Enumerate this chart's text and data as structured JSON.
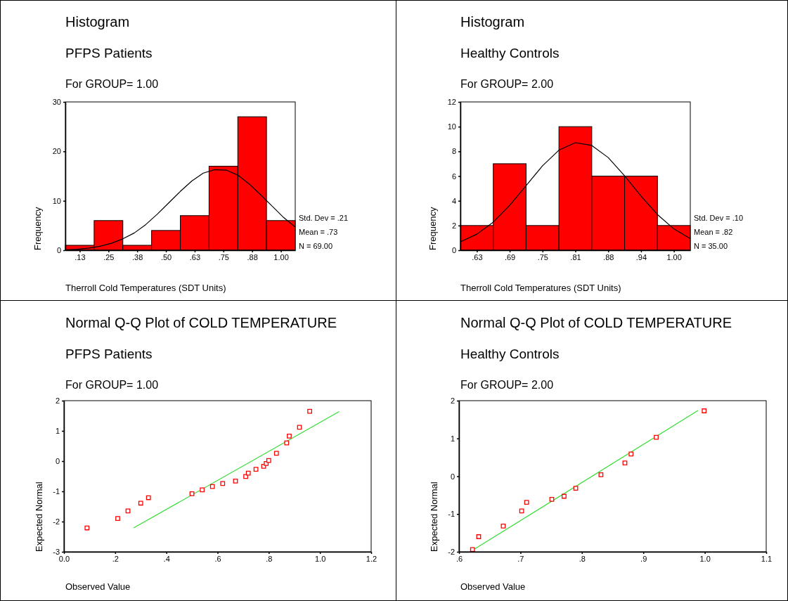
{
  "chart_data": [
    {
      "type": "histogram",
      "title": "Histogram",
      "subtitle": "PFPS Patients",
      "xlabel": "Therroll Cold Temperatures (SDT Units)",
      "ylabel": "Frequency",
      "annotations": [
        "For GROUP= 1.00",
        "Std. Dev = .21",
        "Mean = .73",
        "N = 69.00"
      ],
      "bins": [
        0.0625,
        0.1875,
        0.3125,
        0.4375,
        0.5625,
        0.6875,
        0.8125,
        0.9375,
        1.0625
      ],
      "values": [
        1,
        6,
        1,
        4,
        7,
        17,
        27,
        6
      ],
      "color": "#ff0000",
      "xlim": [
        0.0625,
        1.0625
      ],
      "xticks": [
        {
          "value": 0.125,
          "label": ".13"
        },
        {
          "value": 0.25,
          "label": ".25"
        },
        {
          "value": 0.375,
          "label": ".38"
        },
        {
          "value": 0.5,
          "label": ".50"
        },
        {
          "value": 0.625,
          "label": ".63"
        },
        {
          "value": 0.75,
          "label": ".75"
        },
        {
          "value": 0.875,
          "label": ".88"
        },
        {
          "value": 1.0,
          "label": "1.00"
        }
      ],
      "ylim": [
        0,
        30
      ],
      "yticks": [
        0,
        10,
        20,
        30
      ],
      "series": [
        {
          "type": "line",
          "color": "#000000",
          "x": [
            0.0625,
            0.1125,
            0.1625,
            0.2125,
            0.2625,
            0.3125,
            0.3625,
            0.4125,
            0.4625,
            0.5125,
            0.5625,
            0.6125,
            0.6625,
            0.7125,
            0.7625,
            0.8125,
            0.8625,
            0.9125,
            0.9625,
            1.0125,
            1.0625
          ],
          "values": [
            0.1,
            0.2,
            0.4,
            0.8,
            1.4,
            2.3,
            3.5,
            5.2,
            7.3,
            9.6,
            11.9,
            14.0,
            15.6,
            16.3,
            16.2,
            15.2,
            13.4,
            11.2,
            8.9,
            6.6,
            4.7
          ]
        }
      ]
    },
    {
      "type": "histogram",
      "title": "Histogram",
      "subtitle": "Healthy Controls",
      "xlabel": "Therroll Cold Temperatures (SDT Units)",
      "ylabel": "Frequency",
      "annotations": [
        "For GROUP= 2.00",
        "Std. Dev = .10",
        "Mean = .82",
        "N = 35.00"
      ],
      "bins": [
        0.59375,
        0.65625,
        0.71875,
        0.78125,
        0.84375,
        0.90625,
        0.96875,
        1.03125
      ],
      "values": [
        2,
        7,
        2,
        10,
        6,
        6,
        2
      ],
      "color": "#ff0000",
      "xlim": [
        0.59375,
        1.03125
      ],
      "xticks": [
        {
          "value": 0.625,
          "label": ".63"
        },
        {
          "value": 0.6875,
          "label": ".69"
        },
        {
          "value": 0.75,
          "label": ".75"
        },
        {
          "value": 0.8125,
          "label": ".81"
        },
        {
          "value": 0.875,
          "label": ".88"
        },
        {
          "value": 0.9375,
          "label": ".94"
        },
        {
          "value": 1.0,
          "label": "1.00"
        }
      ],
      "ylim": [
        0,
        12
      ],
      "yticks": [
        0,
        2,
        4,
        6,
        8,
        10,
        12
      ],
      "series": [
        {
          "type": "line",
          "color": "#000000",
          "x": [
            0.59375,
            0.625,
            0.65625,
            0.6875,
            0.71875,
            0.75,
            0.78125,
            0.8125,
            0.84375,
            0.875,
            0.90625,
            0.9375,
            0.96875,
            1.0,
            1.03125
          ],
          "values": [
            0.68,
            1.3,
            2.28,
            3.63,
            5.23,
            6.83,
            8.1,
            8.7,
            8.48,
            7.5,
            6.02,
            4.38,
            2.89,
            1.73,
            0.94
          ]
        }
      ]
    },
    {
      "type": "scatter",
      "title": "Normal Q-Q Plot of COLD TEMPERATURE",
      "subtitle": "PFPS Patients",
      "xlabel": "Observed Value",
      "ylabel": "Expected Normal",
      "annotations": [
        "For GROUP= 1.00"
      ],
      "xlim": [
        0,
        1.2
      ],
      "xticks": [
        {
          "value": 0,
          "label": "0.0"
        },
        {
          "value": 0.2,
          "label": ".2"
        },
        {
          "value": 0.4,
          "label": ".4"
        },
        {
          "value": 0.6,
          "label": ".6"
        },
        {
          "value": 0.8,
          "label": ".8"
        },
        {
          "value": 1.0,
          "label": "1.0"
        },
        {
          "value": 1.2,
          "label": "1.2"
        }
      ],
      "ylim": [
        -3,
        2
      ],
      "yticks": [
        -3,
        -2,
        -1,
        0,
        1,
        2
      ],
      "series": [
        {
          "type": "scatter",
          "marker": "square",
          "color": "#ff0000",
          "x": [
            0.09,
            0.21,
            0.25,
            0.3,
            0.33,
            0.5,
            0.54,
            0.58,
            0.62,
            0.67,
            0.71,
            0.72,
            0.75,
            0.78,
            0.79,
            0.8,
            0.83,
            0.87,
            0.88,
            0.92,
            0.96
          ],
          "values": [
            -2.21,
            -1.9,
            -1.65,
            -1.39,
            -1.21,
            -1.08,
            -0.95,
            -0.84,
            -0.74,
            -0.66,
            -0.51,
            -0.4,
            -0.27,
            -0.17,
            -0.08,
            0.02,
            0.26,
            0.6,
            0.83,
            1.12,
            1.65
          ]
        },
        {
          "type": "line",
          "color": "#33dd33",
          "x": [
            0.272,
            1.075
          ],
          "values": [
            -2.21,
            1.64
          ]
        }
      ]
    },
    {
      "type": "scatter",
      "title": "Normal Q-Q Plot of COLD TEMPERATURE",
      "subtitle": "Healthy Controls",
      "xlabel": "Observed Value",
      "ylabel": "Expected Normal",
      "annotations": [
        "For GROUP= 2.00"
      ],
      "xlim": [
        0.6,
        1.1
      ],
      "xticks": [
        {
          "value": 0.6,
          "label": ".6"
        },
        {
          "value": 0.7,
          "label": ".7"
        },
        {
          "value": 0.8,
          "label": ".8"
        },
        {
          "value": 0.9,
          "label": ".9"
        },
        {
          "value": 1.0,
          "label": "1.0"
        },
        {
          "value": 1.1,
          "label": "1.1"
        }
      ],
      "ylim": [
        -2,
        2
      ],
      "yticks": [
        -2,
        -1,
        0,
        1,
        2
      ],
      "series": [
        {
          "type": "scatter",
          "marker": "square",
          "color": "#ff0000",
          "x": [
            0.622,
            0.632,
            0.672,
            0.702,
            0.71,
            0.751,
            0.771,
            0.79,
            0.831,
            0.87,
            0.88,
            0.921,
            0.999
          ],
          "values": [
            -1.94,
            -1.6,
            -1.32,
            -0.92,
            -0.69,
            -0.61,
            -0.53,
            -0.32,
            0.04,
            0.35,
            0.59,
            1.03,
            1.73
          ]
        },
        {
          "type": "line",
          "color": "#33dd33",
          "x": [
            0.624,
            0.989
          ],
          "values": [
            -1.94,
            1.74
          ]
        }
      ]
    }
  ]
}
